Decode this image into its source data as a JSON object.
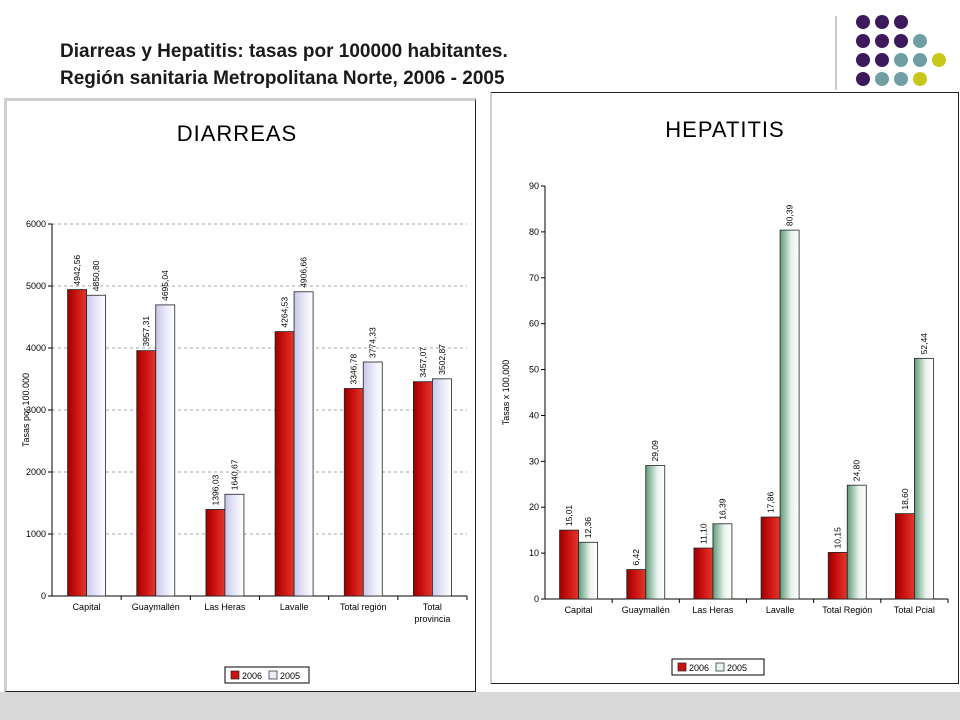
{
  "slide": {
    "title_line1": "Diarreas y Hepatitis: tasas por 100000 habitantes.",
    "title_line2": "Región sanitaria Metropolitana Norte, 2006 - 2005"
  },
  "colors": {
    "bar_2006": "#cc1111",
    "bar_2005_diarreas": "#ececfb",
    "bar_2005_hepatitis": "#e8f3ec",
    "deco_purple": "#3d1a5c",
    "deco_teal": "#6f9fa3",
    "deco_yellow": "#c8c81c"
  },
  "chart_data": [
    {
      "type": "bar",
      "title": "DIARREAS",
      "ylabel": "Tasas por 100.000",
      "xlabel": "",
      "ylim": [
        0,
        6000
      ],
      "yticks": [
        0,
        1000,
        2000,
        3000,
        4000,
        5000,
        6000
      ],
      "categories": [
        "Capital",
        "Guaymallén",
        "Las Heras",
        "Lavalle",
        "Total región",
        "Total provincia"
      ],
      "series": [
        {
          "name": "2006",
          "values": [
            4942.56,
            3957.31,
            1396.03,
            4264.53,
            3346.78,
            3457.07
          ],
          "labels": [
            "4942,56",
            "3957,31",
            "1396,03",
            "4264,53",
            "3346,78",
            "3457,07"
          ]
        },
        {
          "name": "2005",
          "values": [
            4850.8,
            4695.04,
            1640.67,
            4906.66,
            3774.33,
            3502.87
          ],
          "labels": [
            "4850,80",
            "4695,04",
            "1640,67",
            "4906,66",
            "3774,33",
            "3502,87"
          ]
        }
      ],
      "grid": true,
      "legend": "bottom"
    },
    {
      "type": "bar",
      "title": "HEPATITIS",
      "ylabel": "Tasas x 100,000",
      "xlabel": "",
      "ylim": [
        0,
        90
      ],
      "yticks": [
        0,
        10,
        20,
        30,
        40,
        50,
        60,
        70,
        80,
        90
      ],
      "categories": [
        "Capital",
        "Guaymallén",
        "Las Heras",
        "Lavalle",
        "Total Región",
        "Total   Pcial"
      ],
      "series": [
        {
          "name": "2006",
          "values": [
            15.01,
            6.42,
            11.1,
            17.86,
            10.15,
            18.6
          ],
          "labels": [
            "15,01",
            "6,42",
            "11,10",
            "17,86",
            "10,15",
            "18,60"
          ]
        },
        {
          "name": "2005",
          "values": [
            12.36,
            29.09,
            16.39,
            80.39,
            24.8,
            52.44
          ],
          "labels": [
            "12,36",
            "29,09",
            "16,39",
            "80,39",
            "24,80",
            "52,44"
          ]
        }
      ],
      "grid": false,
      "legend": "bottom"
    }
  ]
}
